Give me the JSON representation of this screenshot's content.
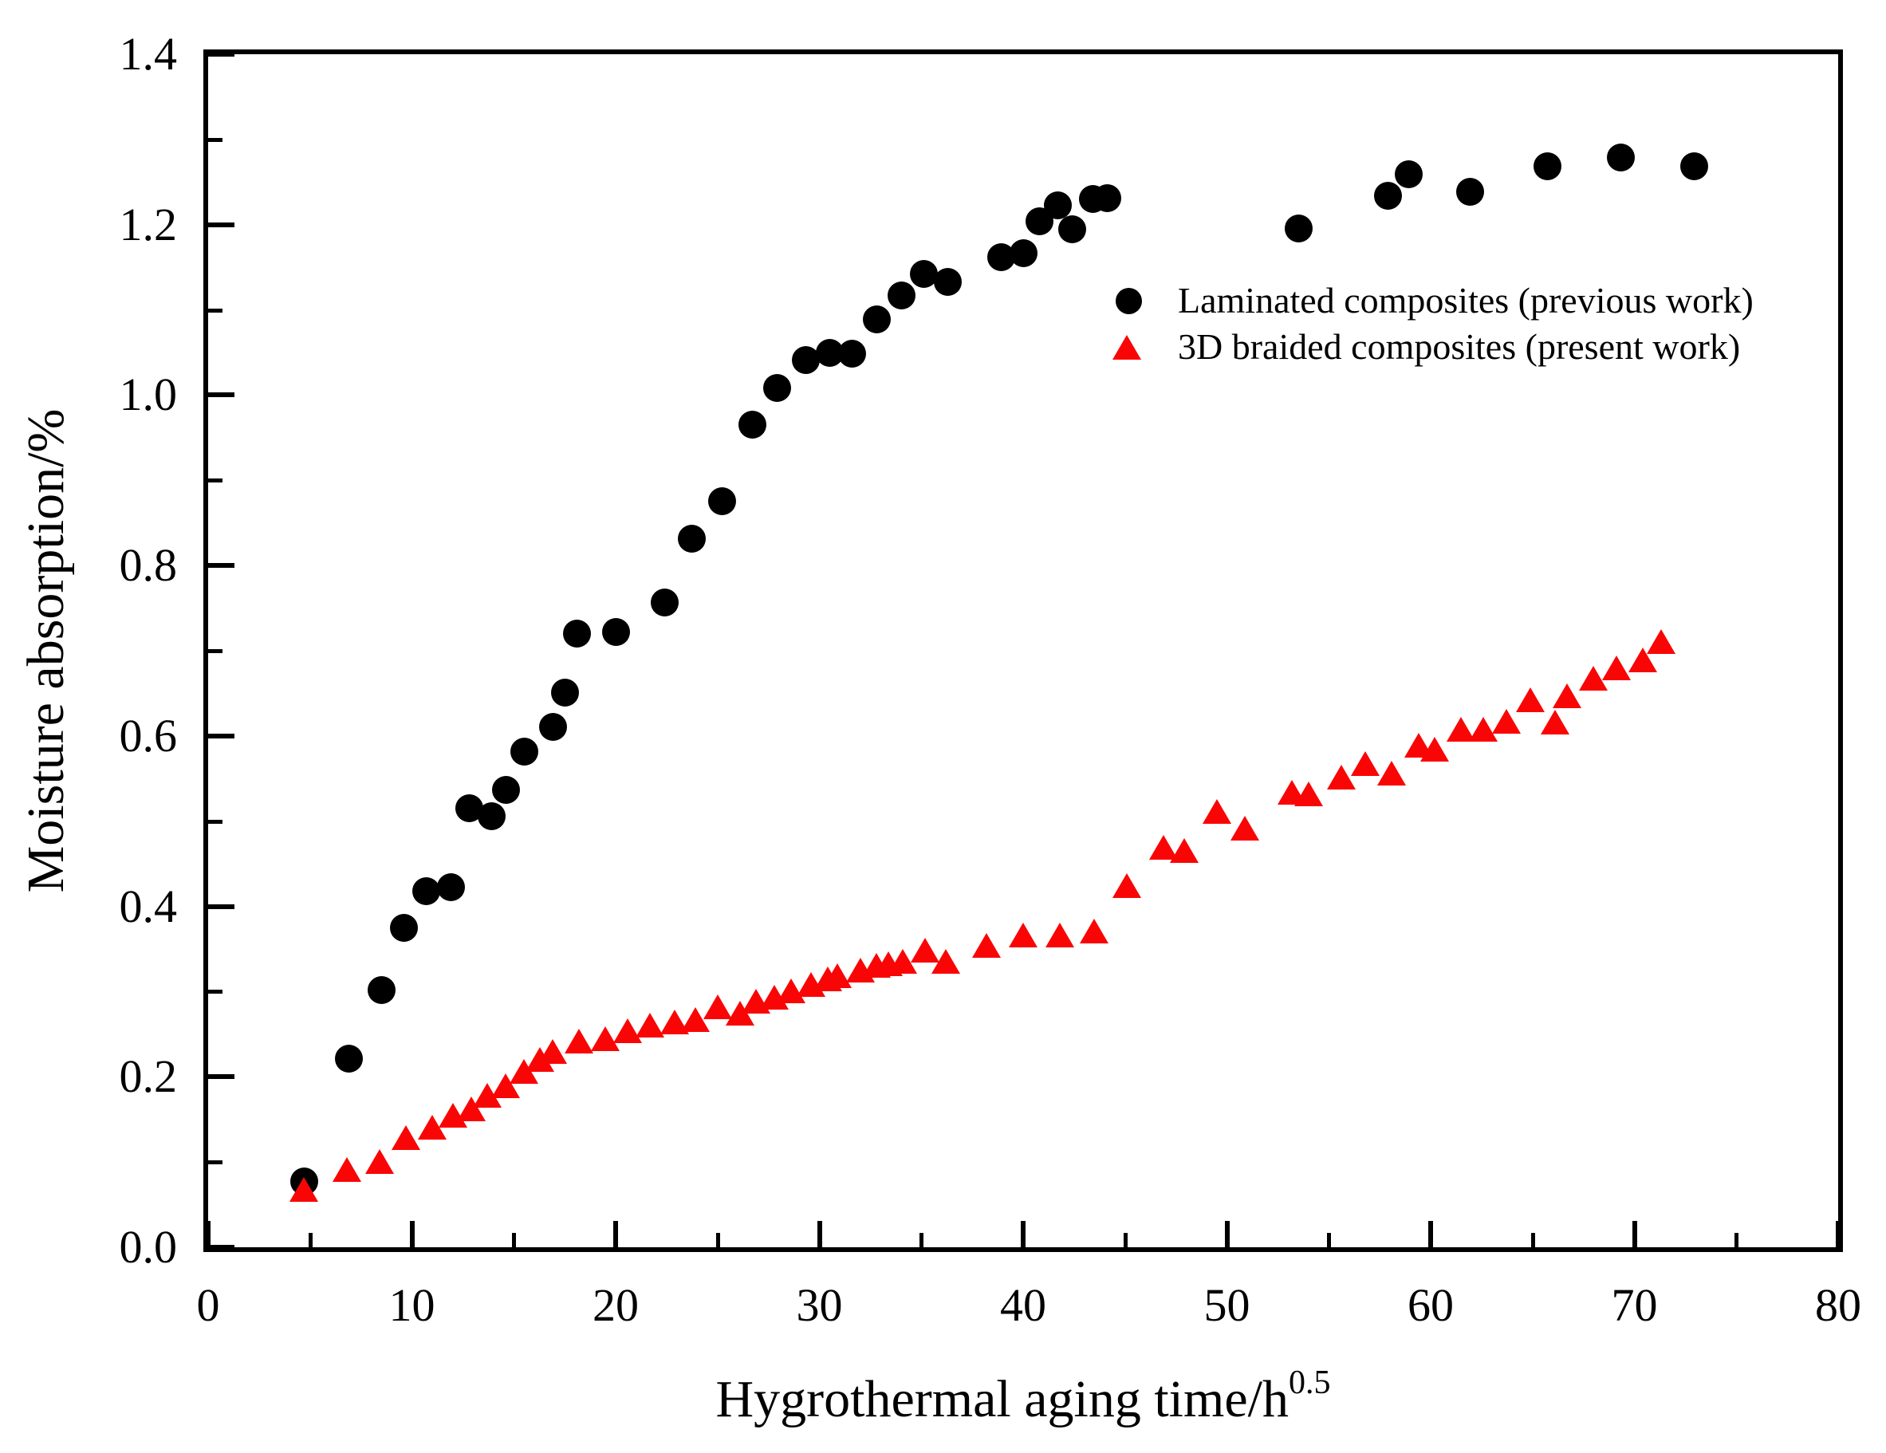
{
  "figure": {
    "x_axis": {
      "title": "Hygrothermal aging time/h",
      "title_superscript": "0.5",
      "tick_labels": [
        "0",
        "10",
        "20",
        "30",
        "40",
        "50",
        "60",
        "70",
        "80"
      ],
      "minor_ticks": [
        5,
        15,
        25,
        35,
        45,
        55,
        65,
        75
      ]
    },
    "y_axis": {
      "title": "Moisture absorption/%",
      "tick_labels": [
        "0.0",
        "0.2",
        "0.4",
        "0.6",
        "0.8",
        "1.0",
        "1.2",
        "1.4"
      ],
      "minor_ticks": [
        0.1,
        0.3,
        0.5,
        0.7,
        0.9,
        1.1,
        1.3
      ]
    },
    "legend": [
      {
        "marker": "circle",
        "color": "#000000",
        "label": "Laminated composites (previous work)"
      },
      {
        "marker": "triangle",
        "color": "#fa0505",
        "label": "3D braided composites (present work)"
      }
    ]
  },
  "chart_data": {
    "type": "scatter",
    "title": "",
    "xlabel": "Hygrothermal aging time/h^0.5",
    "ylabel": "Moisture absorption/%",
    "xlim": [
      0,
      80
    ],
    "ylim": [
      0,
      1.4
    ],
    "grid": false,
    "legend_position": "right-middle-inside",
    "series": [
      {
        "name": "Laminated composites (previous work)",
        "marker": "circle",
        "color": "#000000",
        "points": [
          [
            4.7,
            0.078
          ],
          [
            6.9,
            0.222
          ],
          [
            8.5,
            0.302
          ],
          [
            9.6,
            0.375
          ],
          [
            10.7,
            0.418
          ],
          [
            11.9,
            0.423
          ],
          [
            12.8,
            0.516
          ],
          [
            13.9,
            0.506
          ],
          [
            14.6,
            0.537
          ],
          [
            15.5,
            0.582
          ],
          [
            16.9,
            0.611
          ],
          [
            17.5,
            0.651
          ],
          [
            18.1,
            0.721
          ],
          [
            20.0,
            0.722
          ],
          [
            22.4,
            0.757
          ],
          [
            23.7,
            0.832
          ],
          [
            25.2,
            0.876
          ],
          [
            26.7,
            0.966
          ],
          [
            27.9,
            1.009
          ],
          [
            29.3,
            1.042
          ],
          [
            30.5,
            1.05
          ],
          [
            31.6,
            1.049
          ],
          [
            32.8,
            1.089
          ],
          [
            34.0,
            1.117
          ],
          [
            35.1,
            1.143
          ],
          [
            36.3,
            1.133
          ],
          [
            38.9,
            1.162
          ],
          [
            40.0,
            1.167
          ],
          [
            40.8,
            1.204
          ],
          [
            41.7,
            1.223
          ],
          [
            42.4,
            1.195
          ],
          [
            43.4,
            1.231
          ],
          [
            44.1,
            1.232
          ],
          [
            53.5,
            1.196
          ],
          [
            57.9,
            1.234
          ],
          [
            58.9,
            1.26
          ],
          [
            61.9,
            1.239
          ],
          [
            65.7,
            1.269
          ],
          [
            69.3,
            1.279
          ],
          [
            72.9,
            1.269
          ]
        ]
      },
      {
        "name": "3D braided composites (present work)",
        "marker": "triangle",
        "color": "#fa0505",
        "points": [
          [
            4.7,
            0.067
          ],
          [
            6.8,
            0.091
          ],
          [
            8.4,
            0.1
          ],
          [
            9.7,
            0.128
          ],
          [
            11.0,
            0.14
          ],
          [
            12.0,
            0.154
          ],
          [
            12.9,
            0.162
          ],
          [
            13.7,
            0.178
          ],
          [
            14.6,
            0.189
          ],
          [
            15.5,
            0.206
          ],
          [
            16.3,
            0.22
          ],
          [
            16.9,
            0.229
          ],
          [
            18.2,
            0.241
          ],
          [
            19.5,
            0.244
          ],
          [
            20.6,
            0.254
          ],
          [
            21.7,
            0.26
          ],
          [
            22.9,
            0.264
          ],
          [
            23.9,
            0.267
          ],
          [
            25.0,
            0.282
          ],
          [
            26.1,
            0.274
          ],
          [
            26.9,
            0.288
          ],
          [
            27.8,
            0.293
          ],
          [
            28.6,
            0.3
          ],
          [
            29.6,
            0.308
          ],
          [
            30.4,
            0.314
          ],
          [
            30.9,
            0.318
          ],
          [
            32.0,
            0.325
          ],
          [
            32.8,
            0.33
          ],
          [
            33.4,
            0.332
          ],
          [
            34.1,
            0.335
          ],
          [
            35.2,
            0.348
          ],
          [
            36.2,
            0.335
          ],
          [
            38.2,
            0.354
          ],
          [
            40.0,
            0.366
          ],
          [
            41.8,
            0.366
          ],
          [
            43.5,
            0.371
          ],
          [
            45.1,
            0.424
          ],
          [
            46.9,
            0.469
          ],
          [
            47.9,
            0.465
          ],
          [
            49.5,
            0.511
          ],
          [
            50.9,
            0.491
          ],
          [
            53.2,
            0.533
          ],
          [
            54.0,
            0.532
          ],
          [
            55.6,
            0.551
          ],
          [
            56.8,
            0.567
          ],
          [
            58.1,
            0.556
          ],
          [
            59.4,
            0.589
          ],
          [
            60.2,
            0.584
          ],
          [
            61.5,
            0.607
          ],
          [
            62.6,
            0.607
          ],
          [
            63.7,
            0.617
          ],
          [
            64.9,
            0.642
          ],
          [
            66.1,
            0.616
          ],
          [
            66.7,
            0.647
          ],
          [
            68.0,
            0.667
          ],
          [
            69.1,
            0.679
          ],
          [
            70.4,
            0.689
          ],
          [
            71.3,
            0.71
          ]
        ]
      }
    ]
  }
}
